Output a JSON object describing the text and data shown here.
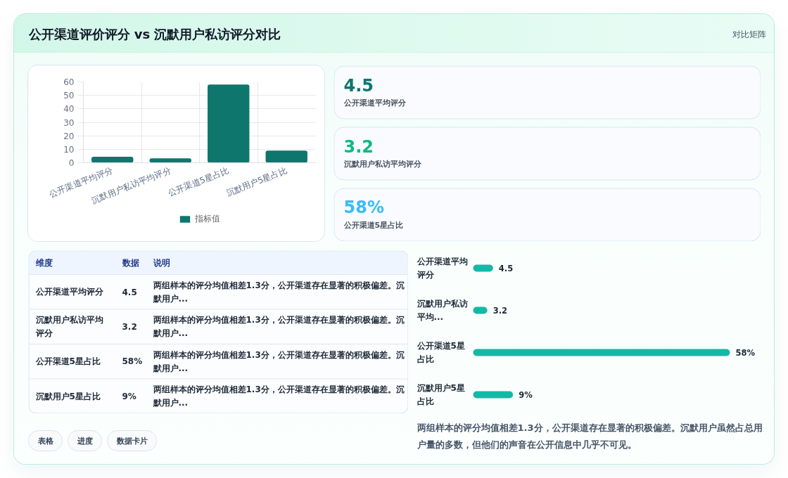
{
  "chart_data": [
    {
      "type": "bar",
      "title": "公开渠道评价评分 vs 沉默用户私访评分对比",
      "categories": [
        "公开渠道平均评分",
        "沉默用户私访平均评分",
        "公开渠道5星占比",
        "沉默用户5星占比"
      ],
      "series": [
        {
          "name": "指标值",
          "color": "#0f766e",
          "values": [
            4.5,
            3.2,
            58,
            9
          ]
        }
      ],
      "ylim": [
        0,
        60
      ],
      "yticks": [
        0,
        10,
        20,
        30,
        40,
        50,
        60
      ],
      "grid": true,
      "legend": "bottom"
    },
    {
      "type": "other",
      "title": "对比矩阵",
      "annotations": [
        "4.5",
        "公开渠道平均评分",
        "3.2",
        "沉默用户私访平均评分",
        "58%",
        "公开渠道5星占比"
      ],
      "colors": [
        "#0f766e",
        "#10b981",
        "#38bdf8"
      ]
    },
    {
      "type": "other",
      "annotations": [
        "维度",
        "数据",
        "说明",
        "公开渠道平均评分",
        "4.5",
        "两组样本的评分均值相差1.3分，公开渠道存在显著的积极偏差。沉默用户...",
        "沉默用户私访平均评分",
        "3.2",
        "两组样本的评分均值相差1.3分，公开渠道存在显著的积极偏差。沉默用户...",
        "公开渠道5星占比",
        "58%",
        "两组样本的评分均值相差1.3分，公开渠道存在显著的积极偏差。沉默用户...",
        "沉默用户5星占比",
        "9%",
        "两组样本的评分均值相差1.3分，公开渠道存在显著的积极偏差。沉默用户..."
      ]
    },
    {
      "type": "bar",
      "orientation": "horizontal",
      "categories": [
        "公开渠道平均评分",
        "沉默用户私访平均...",
        "公开渠道5星占比",
        "沉默用户5星占比"
      ],
      "values": [
        4.5,
        3.2,
        58,
        9
      ],
      "value_labels": [
        "4.5",
        "3.2",
        "58%",
        "9%"
      ],
      "color": "#14b8a6",
      "tick_labels": "y",
      "annotations": [
        "两组样本的评分均值相差1.3分，公开渠道存在显著的积极偏差。沉默用户虽然占总用户量的多数，但他们的声音在公开信息中几乎不可见。"
      ]
    },
    {
      "type": "other",
      "annotations": [
        "表格",
        "进度",
        "数据卡片"
      ]
    }
  ]
}
